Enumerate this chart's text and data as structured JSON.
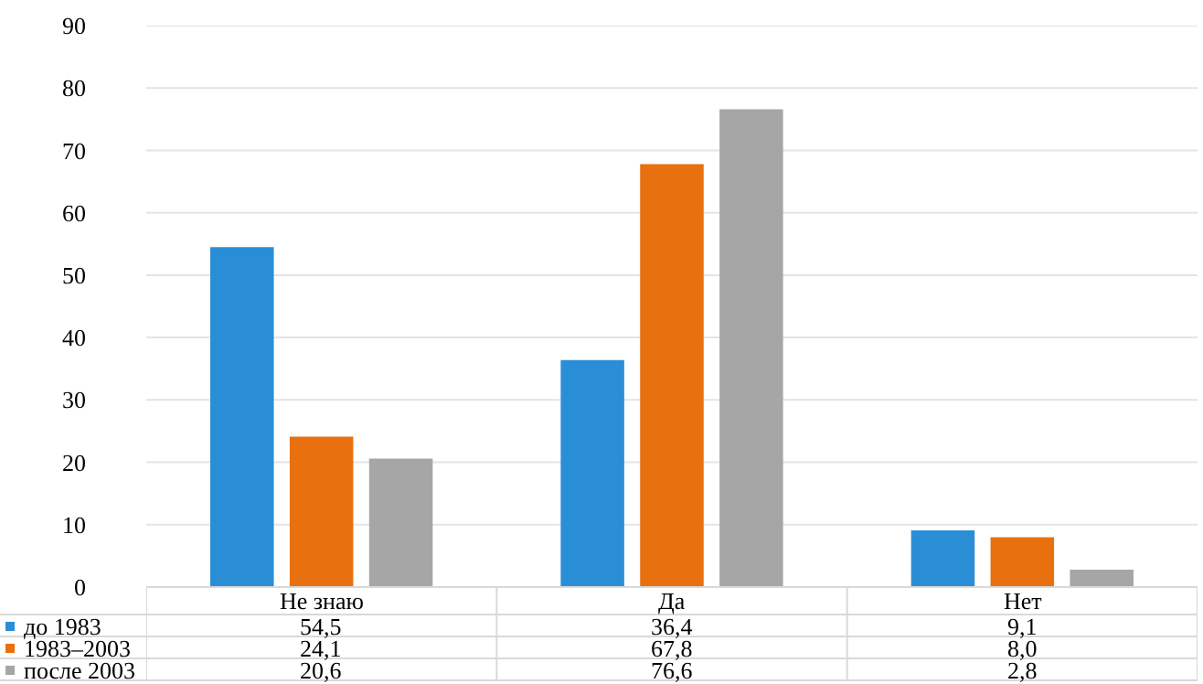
{
  "chart_data": {
    "type": "bar",
    "categories": [
      "Не знаю",
      "Да",
      "Нет"
    ],
    "series": [
      {
        "name": "до 1983",
        "color": "#2a8ed6",
        "values": [
          54.5,
          36.4,
          9.1
        ],
        "value_labels": [
          "54,5",
          "36,4",
          "9,1"
        ]
      },
      {
        "name": "1983–2003",
        "color": "#e8700f",
        "values": [
          24.1,
          67.8,
          8.0
        ],
        "value_labels": [
          "24,1",
          "67,8",
          "8,0"
        ]
      },
      {
        "name": "после 2003",
        "color": "#a6a6a6",
        "values": [
          20.6,
          76.6,
          2.8
        ],
        "value_labels": [
          "20,6",
          "76,6",
          "2,8"
        ]
      }
    ],
    "ylim": [
      0,
      90
    ],
    "yticks": [
      0,
      10,
      20,
      30,
      40,
      50,
      60,
      70,
      80,
      90
    ],
    "grid": "y",
    "legend": "bottom left"
  }
}
